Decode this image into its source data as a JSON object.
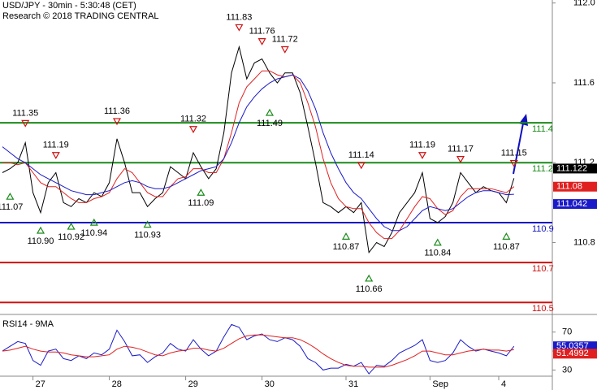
{
  "chart_data": {
    "type": "price",
    "title": "USD/JPY - 30min - 5:30:48 (CET)",
    "subtitle": "Research © 2018 TRADING CENTRAL",
    "categories": [
      null,
      null,
      null,
      null,
      "27",
      null,
      null,
      null,
      null,
      null,
      null,
      null,
      null,
      null,
      "28",
      null,
      null,
      null,
      null,
      null,
      null,
      null,
      null,
      null,
      "29",
      null,
      null,
      null,
      null,
      null,
      null,
      null,
      null,
      null,
      "30",
      null,
      null,
      null,
      null,
      null,
      null,
      null,
      null,
      null,
      null,
      "31",
      null,
      null,
      null,
      null,
      null,
      null,
      null,
      null,
      null,
      null,
      "Sep",
      null,
      null,
      null,
      null,
      null,
      null,
      null,
      null,
      "4",
      null,
      null
    ],
    "ylim": [
      110.44,
      112.015
    ],
    "yticks": [
      {
        "value": 112,
        "label": "112.0"
      },
      111.6,
      111.2,
      110.8
    ],
    "series": [
      {
        "name": "USD/JPY",
        "color": "#000000",
        "values": [
          111.15,
          111.17,
          111.2,
          111.3,
          111.05,
          110.95,
          111.1,
          111.15,
          111.0,
          110.98,
          111.02,
          111.0,
          111.05,
          111.03,
          111.1,
          111.32,
          111.2,
          111.05,
          111.05,
          110.98,
          111.02,
          111.05,
          111.18,
          111.15,
          111.12,
          111.25,
          111.18,
          111.12,
          111.17,
          111.35,
          111.65,
          111.78,
          111.62,
          111.7,
          111.72,
          111.65,
          111.6,
          111.65,
          111.65,
          111.55,
          111.38,
          111.2,
          111.0,
          110.98,
          110.95,
          110.98,
          110.95,
          111.0,
          110.75,
          110.8,
          110.78,
          110.85,
          110.95,
          111.0,
          111.05,
          111.15,
          110.92,
          110.9,
          110.93,
          111.0,
          111.15,
          111.1,
          111.05,
          111.08,
          111.06,
          111.05,
          111.0,
          111.122
        ]
      },
      {
        "name": "MA fast",
        "color": "#e02020",
        "values": [
          111.2,
          111.2,
          111.19,
          111.2,
          111.15,
          111.1,
          111.08,
          111.08,
          111.05,
          111.02,
          111.0,
          111.0,
          111.02,
          111.03,
          111.05,
          111.12,
          111.17,
          111.15,
          111.1,
          111.05,
          111.03,
          111.03,
          111.08,
          111.12,
          111.13,
          111.17,
          111.17,
          111.15,
          111.15,
          111.22,
          111.35,
          111.5,
          111.58,
          111.62,
          111.66,
          111.66,
          111.64,
          111.63,
          111.64,
          111.6,
          111.5,
          111.38,
          111.22,
          111.1,
          111.02,
          110.98,
          110.97,
          110.97,
          110.9,
          110.85,
          110.82,
          110.82,
          110.86,
          110.92,
          110.98,
          111.03,
          111.02,
          110.97,
          110.94,
          110.96,
          111.03,
          111.07,
          111.07,
          111.07,
          111.07,
          111.06,
          111.05,
          111.08
        ]
      },
      {
        "name": "MA slow",
        "color": "#1a1ac8",
        "values": [
          111.28,
          111.25,
          111.22,
          111.2,
          111.17,
          111.14,
          111.12,
          111.1,
          111.08,
          111.06,
          111.05,
          111.04,
          111.04,
          111.05,
          111.06,
          111.08,
          111.1,
          111.11,
          111.1,
          111.08,
          111.07,
          111.07,
          111.08,
          111.1,
          111.12,
          111.14,
          111.16,
          111.17,
          111.18,
          111.22,
          111.3,
          111.4,
          111.48,
          111.53,
          111.57,
          111.6,
          111.62,
          111.63,
          111.64,
          111.62,
          111.56,
          111.47,
          111.35,
          111.25,
          111.17,
          111.1,
          111.05,
          111.02,
          110.97,
          110.92,
          110.88,
          110.86,
          110.86,
          110.88,
          110.92,
          110.96,
          110.98,
          110.97,
          110.96,
          110.97,
          111.0,
          111.03,
          111.05,
          111.06,
          111.06,
          111.05,
          111.04,
          111.042
        ]
      }
    ],
    "highs": {
      "color": "#d01010",
      "values": [
        null,
        null,
        null,
        111.35,
        null,
        null,
        null,
        111.19,
        null,
        null,
        null,
        null,
        null,
        null,
        null,
        111.36,
        null,
        null,
        null,
        null,
        null,
        null,
        null,
        null,
        null,
        111.32,
        null,
        null,
        null,
        null,
        null,
        111.83,
        null,
        null,
        111.76,
        null,
        null,
        111.72,
        null,
        null,
        null,
        null,
        null,
        null,
        null,
        null,
        null,
        111.14,
        null,
        null,
        null,
        null,
        null,
        null,
        null,
        111.19,
        null,
        null,
        null,
        null,
        111.17,
        null,
        null,
        null,
        null,
        null,
        null,
        111.15
      ],
      "value_labels": [
        null,
        null,
        null,
        "111.35",
        null,
        null,
        null,
        "111.19",
        null,
        null,
        null,
        null,
        null,
        null,
        null,
        "111.36",
        null,
        null,
        null,
        null,
        null,
        null,
        null,
        null,
        null,
        "111.32",
        null,
        null,
        null,
        null,
        null,
        "111.83",
        null,
        null,
        "111.76",
        null,
        null,
        "111.72",
        null,
        null,
        null,
        null,
        null,
        null,
        null,
        null,
        null,
        "111.14",
        null,
        null,
        null,
        null,
        null,
        null,
        null,
        "111.19",
        null,
        null,
        null,
        null,
        "111.17",
        null,
        null,
        null,
        null,
        null,
        null,
        "111.15"
      ]
    },
    "lows": {
      "color": "#1a8a1a",
      "values": [
        null,
        111.07,
        null,
        null,
        null,
        110.9,
        null,
        null,
        null,
        110.92,
        null,
        null,
        110.94,
        null,
        null,
        null,
        null,
        null,
        null,
        110.93,
        null,
        null,
        null,
        null,
        null,
        null,
        111.09,
        null,
        null,
        null,
        null,
        null,
        null,
        null,
        null,
        111.49,
        null,
        null,
        null,
        null,
        null,
        null,
        null,
        null,
        null,
        110.87,
        null,
        null,
        110.66,
        null,
        null,
        null,
        null,
        null,
        null,
        null,
        null,
        110.84,
        null,
        null,
        null,
        null,
        null,
        null,
        null,
        null,
        110.87,
        null
      ],
      "value_labels": [
        null,
        "111.07",
        null,
        null,
        null,
        "110.90",
        null,
        null,
        null,
        "110.92",
        null,
        null,
        "110.94",
        null,
        null,
        null,
        null,
        null,
        null,
        "110.93",
        null,
        null,
        null,
        null,
        null,
        null,
        "111.09",
        null,
        null,
        null,
        null,
        null,
        null,
        null,
        null,
        "111.49",
        null,
        null,
        null,
        null,
        null,
        null,
        null,
        null,
        null,
        "110.87",
        null,
        null,
        "110.66",
        null,
        null,
        null,
        null,
        null,
        null,
        null,
        null,
        "110.84",
        null,
        null,
        null,
        null,
        null,
        null,
        null,
        null,
        "110.87",
        null
      ]
    },
    "levels": {
      "values": [
        111.4,
        111.2,
        110.9,
        110.7,
        110.5
      ],
      "colors": [
        "#1a8a1a",
        "#1a8a1a",
        "#1010c0",
        "#d01010",
        "#d01010"
      ]
    },
    "rsi": {
      "title": "RSI14 - 9MA",
      "ylim": [
        23.5,
        88.6
      ],
      "yticks": [
        30,
        50,
        70
      ],
      "series": [
        {
          "name": "RSI14",
          "color": "#1a1ac8",
          "values": [
            50,
            55,
            60,
            58,
            40,
            35,
            50,
            52,
            42,
            40,
            45,
            42,
            48,
            46,
            52,
            72,
            60,
            45,
            46,
            38,
            44,
            48,
            58,
            52,
            50,
            62,
            52,
            45,
            50,
            65,
            78,
            75,
            62,
            66,
            68,
            62,
            60,
            64,
            62,
            55,
            42,
            38,
            30,
            32,
            32,
            36,
            34,
            38,
            26,
            35,
            34,
            40,
            48,
            52,
            56,
            62,
            40,
            38,
            40,
            48,
            62,
            55,
            50,
            52,
            50,
            48,
            45,
            55.0357
          ]
        },
        {
          "name": "9MA",
          "color": "#e02020",
          "values": [
            50,
            51,
            53,
            55,
            52,
            50,
            49,
            49,
            48,
            46,
            45,
            44,
            44,
            45,
            46,
            52,
            55,
            54,
            52,
            49,
            46,
            45,
            48,
            50,
            51,
            53,
            53,
            51,
            50,
            53,
            58,
            63,
            66,
            67,
            67,
            66,
            65,
            64,
            64,
            62,
            58,
            53,
            47,
            42,
            38,
            35,
            34,
            34,
            33,
            33,
            33,
            35,
            38,
            41,
            45,
            50,
            50,
            48,
            46,
            46,
            48,
            50,
            51,
            52,
            51,
            51,
            50,
            51.4992
          ]
        }
      ]
    }
  }
}
